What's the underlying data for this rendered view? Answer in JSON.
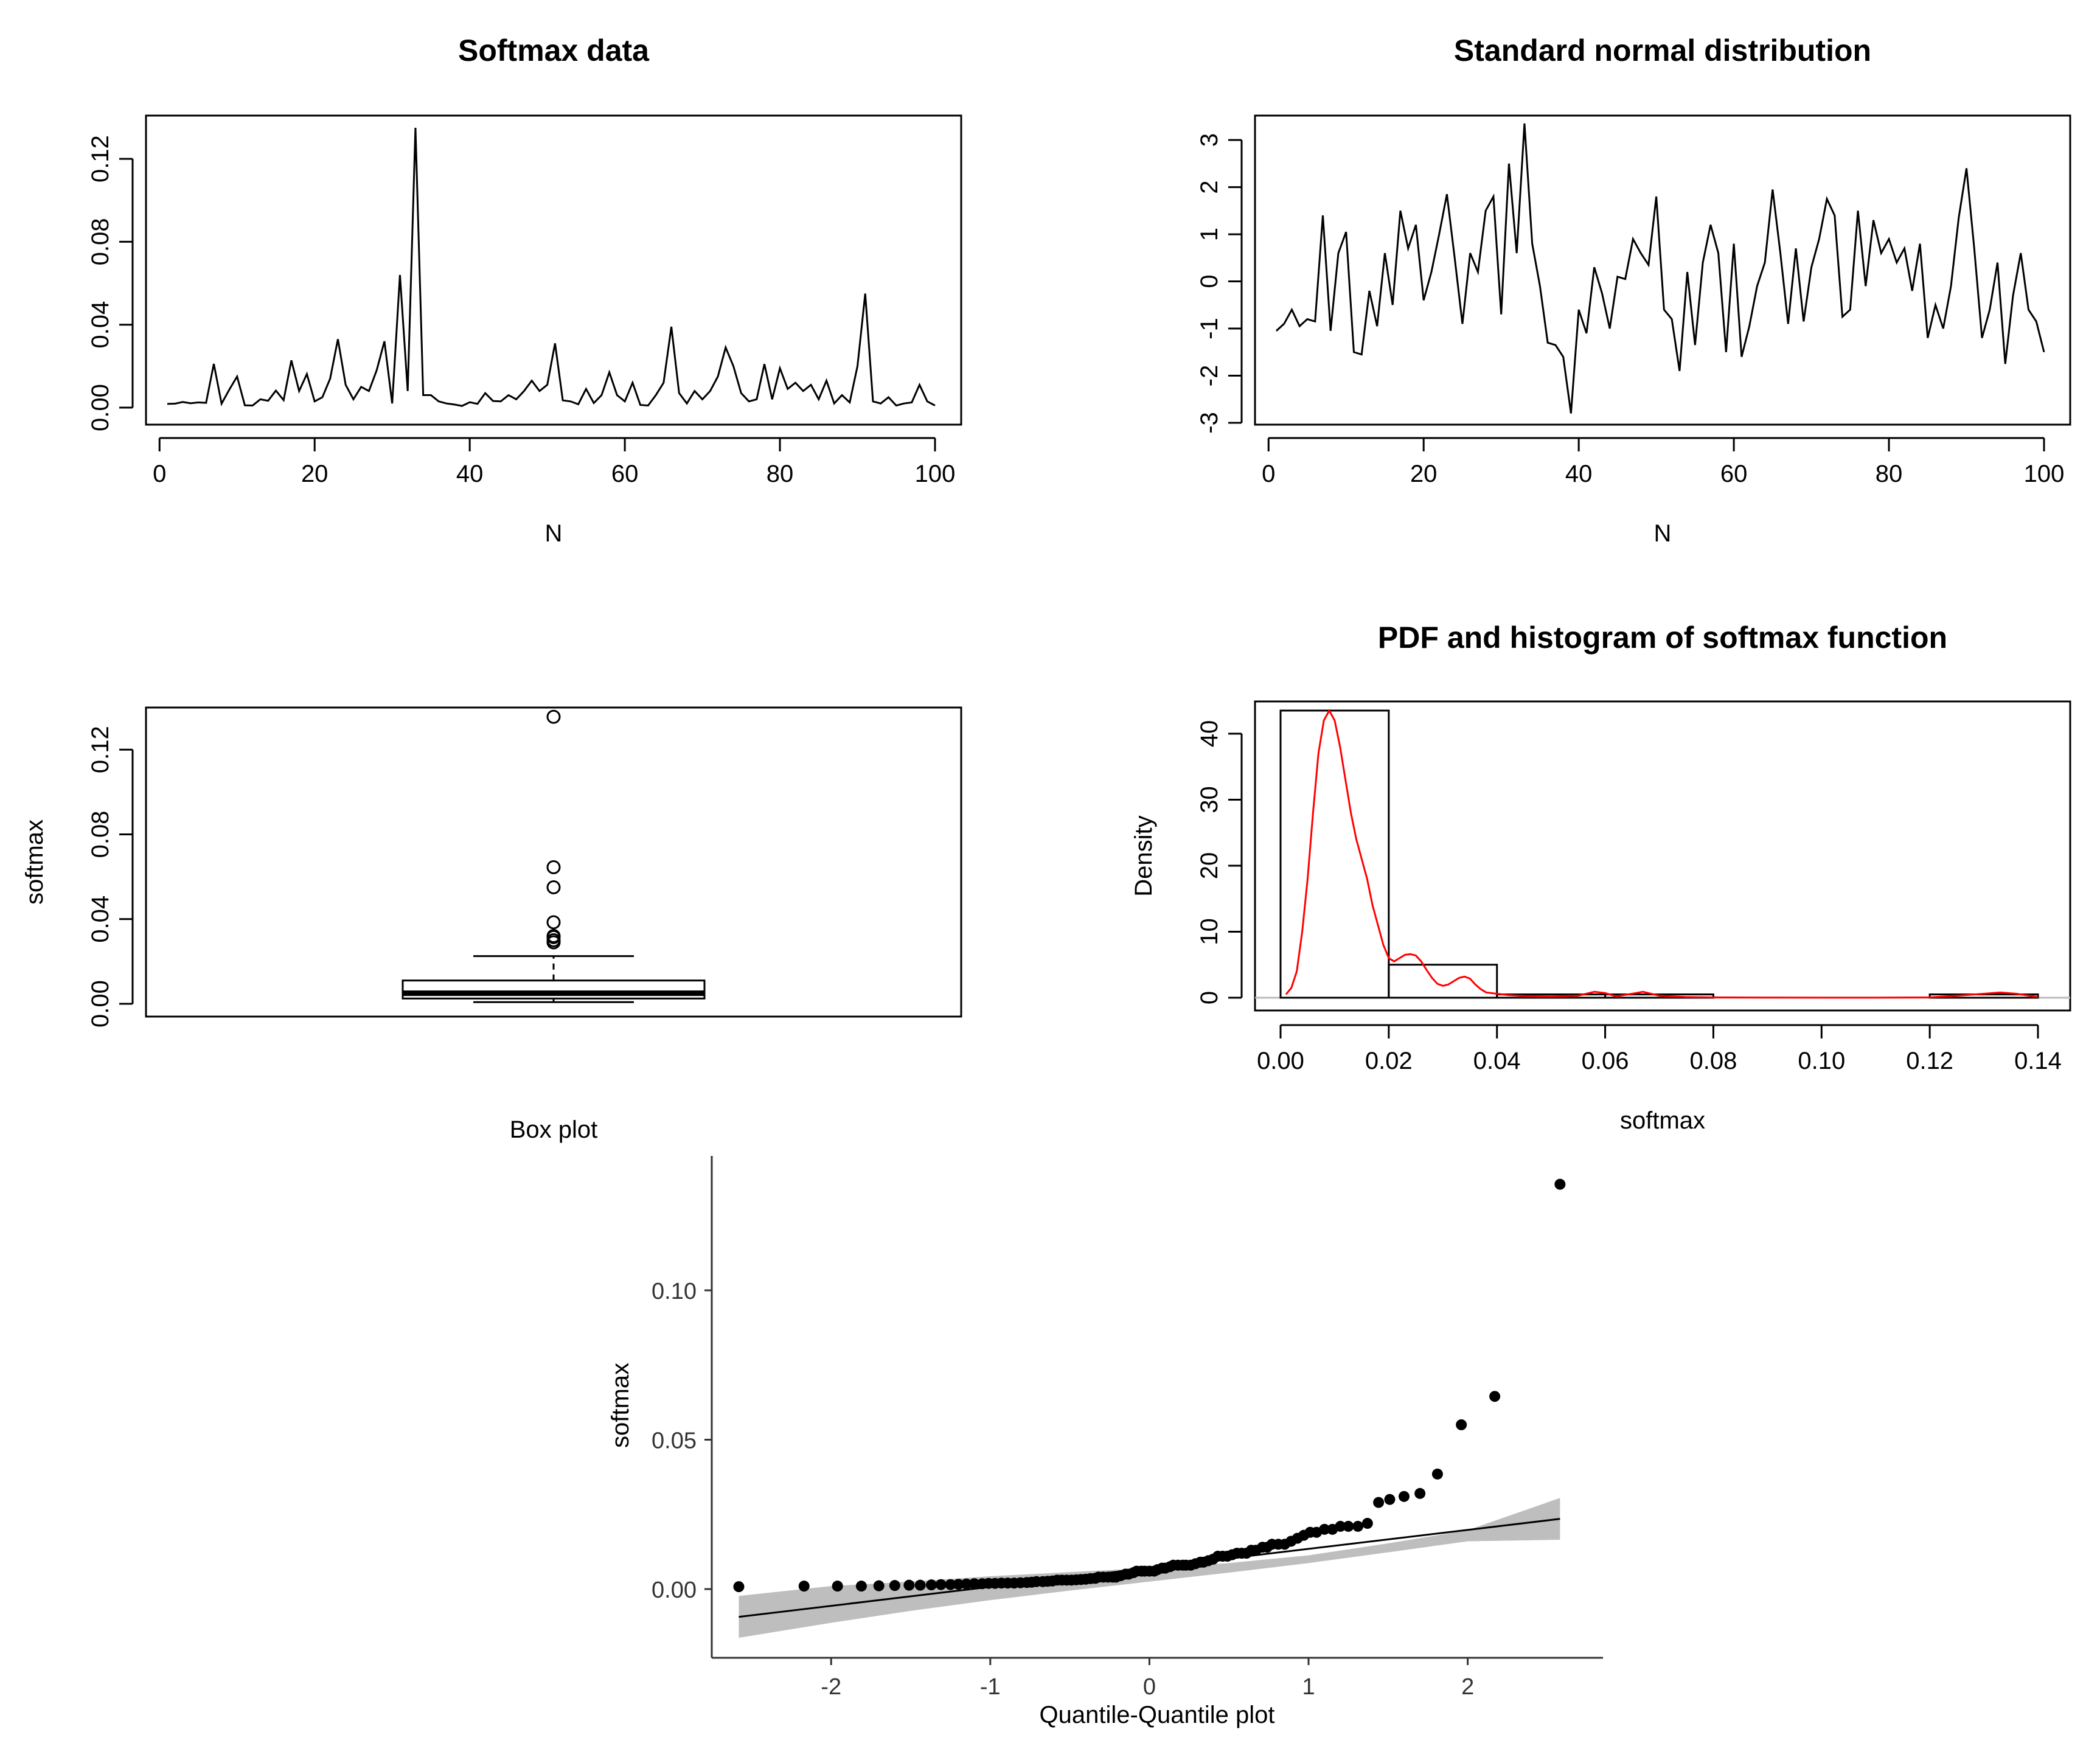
{
  "chart_data": [
    {
      "id": "softmax_series",
      "type": "line",
      "title": "Softmax data",
      "xlabel": "N",
      "ylabel": "",
      "xlim": [
        1,
        100
      ],
      "ylim": [
        0,
        0.135
      ],
      "xticks": [
        0,
        20,
        40,
        60,
        80,
        100
      ],
      "yticks": [
        0.0,
        0.04,
        0.08,
        0.12
      ],
      "ytick_labels": [
        "0.00",
        "0.04",
        "0.08",
        "0.12"
      ],
      "x": [
        1,
        2,
        3,
        4,
        5,
        6,
        7,
        8,
        9,
        10,
        11,
        12,
        13,
        14,
        15,
        16,
        17,
        18,
        19,
        20,
        21,
        22,
        23,
        24,
        25,
        26,
        27,
        28,
        29,
        30,
        31,
        32,
        33,
        34,
        35,
        36,
        37,
        38,
        39,
        40,
        41,
        42,
        43,
        44,
        45,
        46,
        47,
        48,
        49,
        50,
        51,
        52,
        53,
        54,
        55,
        56,
        57,
        58,
        59,
        60,
        61,
        62,
        63,
        64,
        65,
        66,
        67,
        68,
        69,
        70,
        71,
        72,
        73,
        74,
        75,
        76,
        77,
        78,
        79,
        80,
        81,
        82,
        83,
        84,
        85,
        86,
        87,
        88,
        89,
        90,
        91,
        92,
        93,
        94,
        95,
        96,
        97,
        98,
        99,
        100
      ],
      "y": [
        0.0018,
        0.0019,
        0.0027,
        0.0021,
        0.0025,
        0.0023,
        0.0211,
        0.0019,
        0.0087,
        0.015,
        0.0011,
        0.001,
        0.004,
        0.0033,
        0.0082,
        0.0036,
        0.0228,
        0.008,
        0.0162,
        0.003,
        0.005,
        0.014,
        0.033,
        0.011,
        0.004,
        0.01,
        0.008,
        0.018,
        0.032,
        0.002,
        0.064,
        0.008,
        0.135,
        0.006,
        0.006,
        0.003,
        0.002,
        0.0015,
        0.0008,
        0.0026,
        0.0018,
        0.007,
        0.0032,
        0.003,
        0.006,
        0.004,
        0.008,
        0.013,
        0.008,
        0.011,
        0.031,
        0.0035,
        0.003,
        0.0016,
        0.009,
        0.0022,
        0.006,
        0.017,
        0.006,
        0.003,
        0.012,
        0.0013,
        0.001,
        0.006,
        0.012,
        0.039,
        0.007,
        0.002,
        0.008,
        0.004,
        0.008,
        0.015,
        0.029,
        0.02,
        0.007,
        0.003,
        0.004,
        0.021,
        0.004,
        0.019,
        0.009,
        0.012,
        0.008,
        0.011,
        0.004,
        0.013,
        0.002,
        0.006,
        0.0025,
        0.02,
        0.055,
        0.003,
        0.002,
        0.005,
        0.001,
        0.002,
        0.0025,
        0.011,
        0.003,
        0.001
      ]
    },
    {
      "id": "normal_series",
      "type": "line",
      "title": "Standard normal distribution",
      "xlabel": "N",
      "ylabel": "",
      "xlim": [
        1,
        100
      ],
      "ylim": [
        -3,
        3.35
      ],
      "xticks": [
        0,
        20,
        40,
        60,
        80,
        100
      ],
      "yticks": [
        -3,
        -2,
        -1,
        0,
        1,
        2,
        3
      ],
      "ytick_labels": [
        "-3",
        "-2",
        "-1",
        "0",
        "1",
        "2",
        "3"
      ],
      "x": [
        1,
        2,
        3,
        4,
        5,
        6,
        7,
        8,
        9,
        10,
        11,
        12,
        13,
        14,
        15,
        16,
        17,
        18,
        19,
        20,
        21,
        22,
        23,
        24,
        25,
        26,
        27,
        28,
        29,
        30,
        31,
        32,
        33,
        34,
        35,
        36,
        37,
        38,
        39,
        40,
        41,
        42,
        43,
        44,
        45,
        46,
        47,
        48,
        49,
        50,
        51,
        52,
        53,
        54,
        55,
        56,
        57,
        58,
        59,
        60,
        61,
        62,
        63,
        64,
        65,
        66,
        67,
        68,
        69,
        70,
        71,
        72,
        73,
        74,
        75,
        76,
        77,
        78,
        79,
        80,
        81,
        82,
        83,
        84,
        85,
        86,
        87,
        88,
        89,
        90,
        91,
        92,
        93,
        94,
        95,
        96,
        97,
        98,
        99,
        100
      ],
      "y": [
        -1.05,
        -0.9,
        -0.6,
        -0.95,
        -0.8,
        -0.85,
        1.4,
        -1.05,
        0.6,
        1.05,
        -1.5,
        -1.55,
        -0.2,
        -0.95,
        0.6,
        -0.5,
        1.5,
        0.7,
        1.2,
        -0.4,
        0.2,
        1.0,
        1.85,
        0.5,
        -0.9,
        0.6,
        0.2,
        1.5,
        1.8,
        -0.7,
        2.5,
        0.6,
        3.35,
        0.8,
        -0.1,
        -1.3,
        -1.35,
        -1.6,
        -2.8,
        -0.6,
        -1.1,
        0.3,
        -0.25,
        -1.0,
        0.1,
        0.05,
        0.9,
        0.6,
        0.35,
        1.8,
        -0.6,
        -0.8,
        -1.9,
        0.2,
        -1.35,
        0.4,
        1.2,
        0.6,
        -1.5,
        0.8,
        -1.6,
        -0.95,
        -0.1,
        0.4,
        1.95,
        0.6,
        -0.9,
        0.7,
        -0.85,
        0.3,
        0.9,
        1.75,
        1.4,
        -0.75,
        -0.6,
        1.5,
        -0.1,
        1.3,
        0.6,
        0.9,
        0.4,
        0.7,
        -0.2,
        0.8,
        -1.2,
        -0.5,
        -1.0,
        -0.1,
        1.35,
        2.4,
        0.7,
        -1.2,
        -0.6,
        0.4,
        -1.75,
        -0.3,
        0.6,
        -0.6,
        -0.85,
        -1.5
      ]
    },
    {
      "id": "softmax_boxplot",
      "type": "boxplot",
      "title": "",
      "xlabel": "Box plot",
      "ylabel": "softmax",
      "ylim": [
        0,
        0.135
      ],
      "yticks": [
        0.0,
        0.04,
        0.08,
        0.12
      ],
      "ytick_labels": [
        "0.00",
        "0.04",
        "0.08",
        "0.12"
      ],
      "whisker_low": 0.0008,
      "q1": 0.0025,
      "median": 0.005,
      "q3": 0.011,
      "whisker_high": 0.0225,
      "outliers": [
        0.029,
        0.03,
        0.0315,
        0.032,
        0.0385,
        0.055,
        0.0645,
        0.1355
      ]
    },
    {
      "id": "softmax_hist",
      "type": "histogram",
      "title": "PDF and histogram of softmax function",
      "xlabel": "softmax",
      "ylabel": "Density",
      "xlim": [
        0,
        0.14
      ],
      "ylim": [
        0,
        43.5
      ],
      "xticks": [
        0,
        0.02,
        0.04,
        0.06,
        0.08,
        0.1,
        0.12,
        0.14
      ],
      "xtick_labels": [
        "0.00",
        "0.02",
        "0.04",
        "0.06",
        "0.08",
        "0.10",
        "0.12",
        "0.14"
      ],
      "yticks": [
        0,
        10,
        20,
        30,
        40
      ],
      "ytick_labels": [
        "0",
        "10",
        "20",
        "30",
        "40"
      ],
      "bins": [
        {
          "from": 0.0,
          "to": 0.02,
          "density": 43.5
        },
        {
          "from": 0.02,
          "to": 0.04,
          "density": 5.0
        },
        {
          "from": 0.04,
          "to": 0.06,
          "density": 0.5
        },
        {
          "from": 0.06,
          "to": 0.08,
          "density": 0.5
        },
        {
          "from": 0.08,
          "to": 0.1,
          "density": 0.0
        },
        {
          "from": 0.1,
          "to": 0.12,
          "density": 0.0
        },
        {
          "from": 0.12,
          "to": 0.14,
          "density": 0.5
        }
      ],
      "density_curve": {
        "color": "#ff0000",
        "x": [
          0.001,
          0.002,
          0.003,
          0.004,
          0.005,
          0.006,
          0.007,
          0.008,
          0.009,
          0.01,
          0.011,
          0.012,
          0.013,
          0.014,
          0.015,
          0.016,
          0.017,
          0.018,
          0.019,
          0.02,
          0.021,
          0.022,
          0.023,
          0.024,
          0.025,
          0.026,
          0.027,
          0.028,
          0.029,
          0.03,
          0.031,
          0.032,
          0.033,
          0.034,
          0.035,
          0.036,
          0.037,
          0.038,
          0.04,
          0.042,
          0.045,
          0.05,
          0.055,
          0.058,
          0.06,
          0.062,
          0.065,
          0.067,
          0.07,
          0.075,
          0.08,
          0.09,
          0.1,
          0.11,
          0.12,
          0.125,
          0.13,
          0.133,
          0.136,
          0.14
        ],
        "y": [
          0.5,
          1.5,
          4,
          10,
          18,
          28,
          37,
          42,
          43.5,
          42,
          38,
          33,
          28,
          24,
          21,
          18,
          14,
          11,
          8,
          6,
          5.5,
          6,
          6.5,
          6.6,
          6.4,
          5.5,
          4.2,
          3.0,
          2.1,
          1.8,
          2.0,
          2.5,
          3.0,
          3.2,
          2.9,
          2.0,
          1.3,
          0.8,
          0.6,
          0.4,
          0.25,
          0.2,
          0.3,
          0.9,
          0.7,
          0.2,
          0.6,
          0.9,
          0.3,
          0.1,
          0.05,
          0.02,
          0.01,
          0.01,
          0.05,
          0.3,
          0.6,
          0.8,
          0.6,
          0.1
        ]
      }
    },
    {
      "id": "qq_plot",
      "type": "scatter",
      "title": "",
      "xlabel": "Quantile-Quantile plot",
      "ylabel": "softmax",
      "xlim": [
        -2.75,
        2.85
      ],
      "ylim": [
        -0.023,
        0.145
      ],
      "xticks": [
        -2,
        -1,
        0,
        1,
        2
      ],
      "xtick_labels": [
        "-2",
        "-1",
        "0",
        "1",
        "2"
      ],
      "yticks": [
        0.0,
        0.05,
        0.1
      ],
      "ytick_labels": [
        "0.00",
        "0.05",
        "0.10"
      ],
      "points": [
        [
          -2.58,
          0.0008
        ],
        [
          -2.17,
          0.001
        ],
        [
          -1.96,
          0.001
        ],
        [
          -1.81,
          0.001
        ],
        [
          -1.7,
          0.0011
        ],
        [
          -1.6,
          0.0012
        ],
        [
          -1.51,
          0.0013
        ],
        [
          -1.44,
          0.0013
        ],
        [
          -1.37,
          0.0014
        ],
        [
          -1.31,
          0.0015
        ],
        [
          -1.25,
          0.0015
        ],
        [
          -1.2,
          0.0016
        ],
        [
          -1.15,
          0.0017
        ],
        [
          -1.1,
          0.0018
        ],
        [
          -1.05,
          0.0018
        ],
        [
          -1.01,
          0.0019
        ],
        [
          -0.97,
          0.0019
        ],
        [
          -0.93,
          0.002
        ],
        [
          -0.89,
          0.002
        ],
        [
          -0.85,
          0.002
        ],
        [
          -0.81,
          0.0021
        ],
        [
          -0.77,
          0.0022
        ],
        [
          -0.74,
          0.0023
        ],
        [
          -0.71,
          0.0025
        ],
        [
          -0.67,
          0.0025
        ],
        [
          -0.64,
          0.0026
        ],
        [
          -0.61,
          0.0027
        ],
        [
          -0.58,
          0.003
        ],
        [
          -0.55,
          0.003
        ],
        [
          -0.52,
          0.003
        ],
        [
          -0.49,
          0.003
        ],
        [
          -0.46,
          0.0031
        ],
        [
          -0.43,
          0.0032
        ],
        [
          -0.4,
          0.0033
        ],
        [
          -0.37,
          0.0035
        ],
        [
          -0.34,
          0.0036
        ],
        [
          -0.32,
          0.004
        ],
        [
          -0.29,
          0.004
        ],
        [
          -0.26,
          0.004
        ],
        [
          -0.23,
          0.004
        ],
        [
          -0.21,
          0.004
        ],
        [
          -0.18,
          0.0045
        ],
        [
          -0.15,
          0.005
        ],
        [
          -0.13,
          0.005
        ],
        [
          -0.1,
          0.0055
        ],
        [
          -0.08,
          0.006
        ],
        [
          -0.05,
          0.006
        ],
        [
          -0.03,
          0.006
        ],
        [
          0.0,
          0.006
        ],
        [
          0.03,
          0.006
        ],
        [
          0.05,
          0.0065
        ],
        [
          0.08,
          0.007
        ],
        [
          0.1,
          0.007
        ],
        [
          0.13,
          0.0075
        ],
        [
          0.15,
          0.008
        ],
        [
          0.18,
          0.008
        ],
        [
          0.21,
          0.008
        ],
        [
          0.23,
          0.008
        ],
        [
          0.26,
          0.008
        ],
        [
          0.29,
          0.0085
        ],
        [
          0.32,
          0.009
        ],
        [
          0.34,
          0.009
        ],
        [
          0.37,
          0.0095
        ],
        [
          0.4,
          0.01
        ],
        [
          0.43,
          0.011
        ],
        [
          0.46,
          0.011
        ],
        [
          0.49,
          0.011
        ],
        [
          0.52,
          0.0115
        ],
        [
          0.55,
          0.012
        ],
        [
          0.58,
          0.012
        ],
        [
          0.61,
          0.012
        ],
        [
          0.64,
          0.013
        ],
        [
          0.67,
          0.013
        ],
        [
          0.71,
          0.014
        ],
        [
          0.74,
          0.014
        ],
        [
          0.77,
          0.015
        ],
        [
          0.81,
          0.015
        ],
        [
          0.85,
          0.015
        ],
        [
          0.89,
          0.016
        ],
        [
          0.93,
          0.017
        ],
        [
          0.97,
          0.018
        ],
        [
          1.01,
          0.019
        ],
        [
          1.05,
          0.019
        ],
        [
          1.1,
          0.02
        ],
        [
          1.15,
          0.02
        ],
        [
          1.2,
          0.021
        ],
        [
          1.25,
          0.021
        ],
        [
          1.31,
          0.021
        ],
        [
          1.37,
          0.022
        ],
        [
          1.44,
          0.029
        ],
        [
          1.51,
          0.03
        ],
        [
          1.6,
          0.031
        ],
        [
          1.7,
          0.032
        ],
        [
          1.81,
          0.0385
        ],
        [
          1.96,
          0.055
        ],
        [
          2.17,
          0.0645
        ],
        [
          2.58,
          0.1355
        ]
      ],
      "reference_line": {
        "x": [
          -2.58,
          2.58
        ],
        "y": [
          -0.0093,
          0.0235
        ]
      },
      "confidence_band": {
        "x": [
          -2.58,
          -2.0,
          -1.5,
          -1.0,
          -0.5,
          0.0,
          0.5,
          1.0,
          1.5,
          2.0,
          2.58
        ],
        "lower": [
          -0.0163,
          -0.0113,
          -0.0073,
          -0.0037,
          -0.0005,
          0.0025,
          0.0055,
          0.0087,
          0.0123,
          0.016,
          0.0165
        ],
        "upper": [
          -0.0023,
          0.001,
          0.0025,
          0.0043,
          0.0057,
          0.007,
          0.0087,
          0.0113,
          0.0153,
          0.0197,
          0.0305
        ]
      }
    }
  ]
}
